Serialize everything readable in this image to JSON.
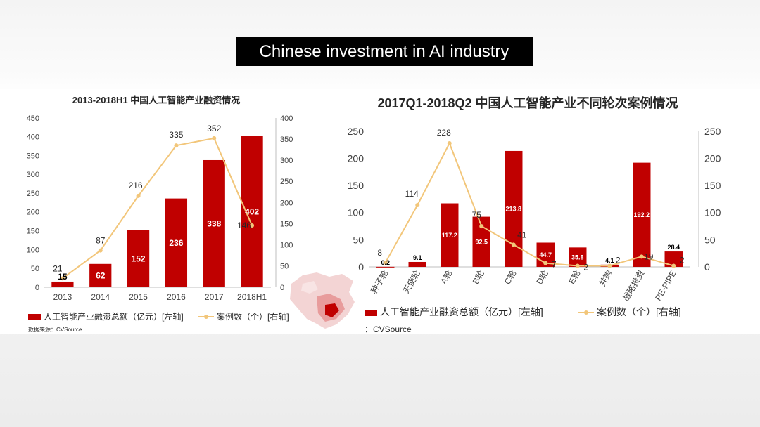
{
  "slide": {
    "title": "Chinese investment in AI industry"
  },
  "colors": {
    "bar": "#c00000",
    "line": "#f2c67a",
    "axis": "#bfbfbf",
    "text": "#404040"
  },
  "chart_data": [
    {
      "type": "bar+line",
      "title": "2013-2018H1  中国人工智能产业融资情况",
      "categories": [
        "2013",
        "2014",
        "2015",
        "2016",
        "2017",
        "2018H1"
      ],
      "series": [
        {
          "name": "人工智能产业融资总额（亿元）[左轴]",
          "type": "bar",
          "axis": "left",
          "values": [
            15,
            62,
            152,
            236,
            338,
            402
          ]
        },
        {
          "name": "案例数（个）[右轴]",
          "type": "line",
          "axis": "right",
          "values": [
            21,
            87,
            216,
            335,
            352,
            146
          ]
        }
      ],
      "y_left": {
        "min": 0,
        "max": 450,
        "ticks": [
          0,
          50,
          100,
          150,
          200,
          250,
          300,
          350,
          400,
          450
        ]
      },
      "y_right": {
        "min": 0,
        "max": 400,
        "ticks": [
          0,
          50,
          100,
          150,
          200,
          250,
          300,
          350,
          400
        ]
      },
      "source": "数据来源：CVSource",
      "legend": "bottom"
    },
    {
      "type": "bar+line",
      "title": "2017Q1-2018Q2  中国人工智能产业不同轮次案例情况",
      "categories": [
        "种子轮",
        "天使轮",
        "A轮",
        "B轮",
        "C轮",
        "D轮",
        "E轮",
        "并购",
        "战略投资",
        "PE-PIPE"
      ],
      "series": [
        {
          "name": "人工智能产业融资总额（亿元）[左轴]",
          "type": "bar",
          "axis": "left",
          "values": [
            0.2,
            9.1,
            117.2,
            92.5,
            213.8,
            44.7,
            35.8,
            4.1,
            192.2,
            28.4
          ]
        },
        {
          "name": "案例数（个）[右轴]",
          "type": "line",
          "axis": "right",
          "values": [
            8,
            114,
            228,
            75,
            41,
            7,
            2,
            2,
            19,
            2
          ]
        }
      ],
      "y_left": {
        "min": 0,
        "max": 250,
        "ticks": [
          0,
          50,
          100,
          150,
          200,
          250
        ]
      },
      "y_right": {
        "min": 0,
        "max": 250,
        "ticks": [
          0,
          50,
          100,
          150,
          200,
          250
        ]
      },
      "source": "：CVSource",
      "legend": "bottom"
    }
  ]
}
